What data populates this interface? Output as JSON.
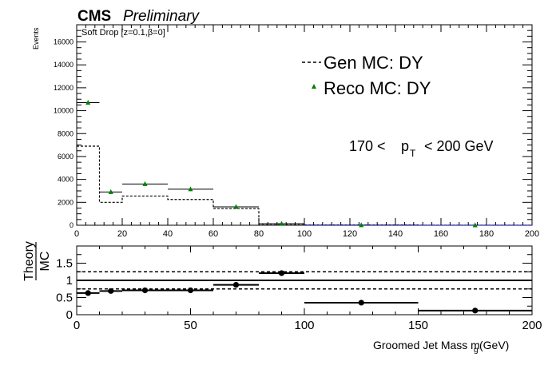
{
  "header": {
    "experiment": "CMS",
    "status": "Preliminary"
  },
  "chart_data": [
    {
      "type": "histogram",
      "panel": "upper",
      "annotation": "Soft Drop [z=0.1,β=0]",
      "kinematic_label": {
        "lower": "170 <",
        "variable": "p",
        "subscript": "T",
        "upper": "< 200 GeV"
      },
      "ylabel": "Events",
      "xlim": [
        0,
        200
      ],
      "ylim": [
        0,
        17500
      ],
      "x_ticks": [
        "0",
        "20",
        "40",
        "60",
        "80",
        "100",
        "120",
        "140",
        "160",
        "180",
        "200"
      ],
      "y_ticks": [
        "0",
        "2000",
        "4000",
        "6000",
        "8000",
        "10000",
        "12000",
        "14000",
        "16000"
      ],
      "legend_position": "top-right",
      "bin_edges": [
        0,
        10,
        20,
        40,
        60,
        80,
        100,
        150,
        200
      ],
      "series": [
        {
          "name": "Gen MC: DY",
          "style": "dashed-histogram",
          "color": "#000000",
          "values": [
            6900,
            2000,
            2550,
            2250,
            1450,
            100,
            20,
            5
          ]
        },
        {
          "name": "Reco MC: DY",
          "style": "triangle-markers",
          "color": "#008000",
          "values": [
            10700,
            2900,
            3600,
            3150,
            1600,
            130,
            8,
            2
          ]
        }
      ]
    },
    {
      "type": "scatter",
      "panel": "ratio",
      "ylabel_numerator": "Theory",
      "ylabel_denominator": "MC",
      "xlabel": "Groomed Jet Mass m",
      "xlabel_subscript": "g",
      "xlabel_unit": "(GeV)",
      "xlim": [
        0,
        200
      ],
      "ylim": [
        0,
        2
      ],
      "x_ticks": [
        "0",
        "50",
        "100",
        "150",
        "200"
      ],
      "y_ticks": [
        "0",
        "0.5",
        "1",
        "1.5"
      ],
      "reference_line": 1,
      "band_lines": [
        0.75,
        1.25
      ],
      "series": [
        {
          "name": "",
          "bin_edges": [
            0,
            10,
            20,
            40,
            60,
            80,
            100,
            150,
            200
          ],
          "values": [
            0.63,
            0.69,
            0.71,
            0.71,
            0.87,
            1.21,
            0.35,
            0.12
          ],
          "errors": [
            0.04,
            0.02,
            0.02,
            0.02,
            0.03,
            0.04,
            0.03,
            0.02
          ]
        }
      ]
    }
  ]
}
